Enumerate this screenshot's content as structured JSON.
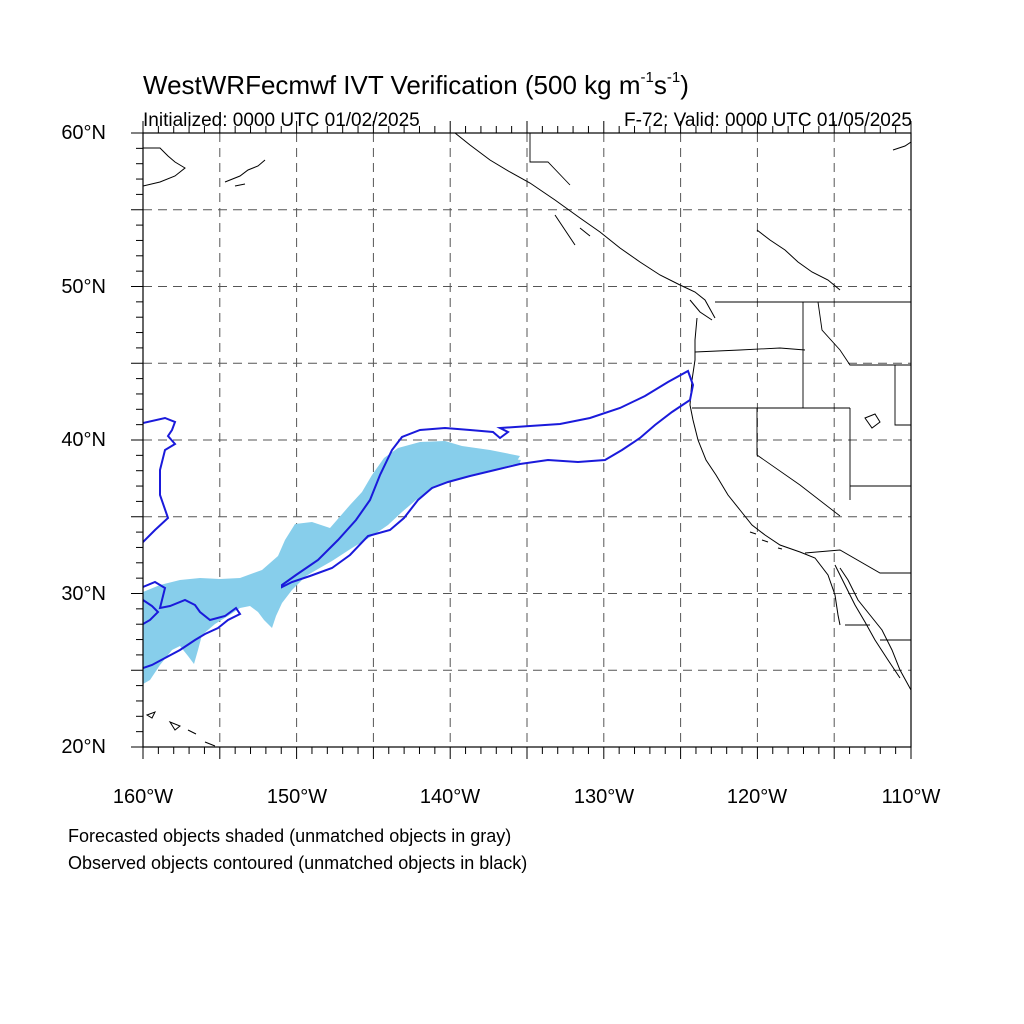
{
  "title": {
    "main": "WestWRFecmwf IVT Verification (500 kg m",
    "exp1": "-1",
    "mid": "s",
    "exp2": "-1",
    "end": ")"
  },
  "init_label": "Initialized: 0000 UTC 01/02/2025",
  "valid_label": "F-72: Valid: 0000 UTC 01/05/2025",
  "lat_labels": [
    "60°N",
    "50°N",
    "40°N",
    "30°N",
    "20°N"
  ],
  "lon_labels": [
    "160°W",
    "150°W",
    "140°W",
    "130°W",
    "120°W",
    "110°W"
  ],
  "footnotes": [
    "Forecasted objects shaded (unmatched objects in gray)",
    "Observed objects contoured (unmatched objects in black)"
  ],
  "colors": {
    "forecast_fill": "#87ceeb",
    "observed_contour": "#1a1adb",
    "coast": "#000000",
    "grid": "#555555"
  },
  "map_extent": {
    "lon": [
      -160,
      -110
    ],
    "lat": [
      20,
      60
    ],
    "grid_step": 5
  }
}
